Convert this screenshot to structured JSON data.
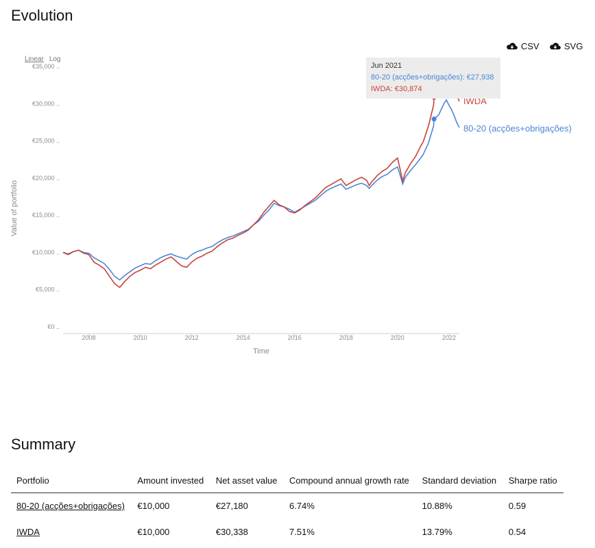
{
  "evolution_title": "Evolution",
  "downloads": {
    "csv_label": "CSV",
    "svg_label": "SVG",
    "icon": "cloud-download-icon"
  },
  "scale_toggle": {
    "linear": "Linear",
    "log": "Log",
    "active": "linear"
  },
  "tooltip": {
    "date": "Jun 2021",
    "line1": "80-20 (acções+obrigações): €27,938",
    "line2": "IWDA: €30,874"
  },
  "chart_data": {
    "type": "line",
    "xlabel": "Time",
    "ylabel": "Value of portfolio",
    "x_ticks": [
      "2008",
      "2010",
      "2012",
      "2014",
      "2016",
      "2018",
      "2020",
      "2022"
    ],
    "y_ticks": [
      "€0",
      "€5,000",
      "€10,000",
      "€15,000",
      "€20,000",
      "€25,000",
      "€30,000",
      "€35,000"
    ],
    "xlim": [
      2007.0,
      2022.4
    ],
    "ylim": [
      0,
      37500
    ],
    "grid": false,
    "highlight_x": 2021.42,
    "series": [
      {
        "name": "80-20 (acções+obrigações)",
        "color": "#4a86d4",
        "points": [
          [
            2007.0,
            10000
          ],
          [
            2007.2,
            9800
          ],
          [
            2007.4,
            10100
          ],
          [
            2007.6,
            10300
          ],
          [
            2007.8,
            10000
          ],
          [
            2008.0,
            9900
          ],
          [
            2008.2,
            9300
          ],
          [
            2008.4,
            8900
          ],
          [
            2008.6,
            8500
          ],
          [
            2008.8,
            7700
          ],
          [
            2009.0,
            6800
          ],
          [
            2009.2,
            6300
          ],
          [
            2009.4,
            6900
          ],
          [
            2009.6,
            7400
          ],
          [
            2009.8,
            7900
          ],
          [
            2010.0,
            8200
          ],
          [
            2010.2,
            8500
          ],
          [
            2010.4,
            8400
          ],
          [
            2010.6,
            8900
          ],
          [
            2010.8,
            9300
          ],
          [
            2011.0,
            9600
          ],
          [
            2011.2,
            9800
          ],
          [
            2011.4,
            9500
          ],
          [
            2011.6,
            9300
          ],
          [
            2011.8,
            9100
          ],
          [
            2012.0,
            9700
          ],
          [
            2012.2,
            10100
          ],
          [
            2012.4,
            10300
          ],
          [
            2012.6,
            10600
          ],
          [
            2012.8,
            10800
          ],
          [
            2013.0,
            11300
          ],
          [
            2013.2,
            11700
          ],
          [
            2013.4,
            12000
          ],
          [
            2013.6,
            12200
          ],
          [
            2013.8,
            12500
          ],
          [
            2014.0,
            12800
          ],
          [
            2014.2,
            13100
          ],
          [
            2014.4,
            13700
          ],
          [
            2014.6,
            14200
          ],
          [
            2014.8,
            15000
          ],
          [
            2015.0,
            15700
          ],
          [
            2015.2,
            16600
          ],
          [
            2015.4,
            16300
          ],
          [
            2015.6,
            16100
          ],
          [
            2015.8,
            15800
          ],
          [
            2016.0,
            15400
          ],
          [
            2016.2,
            15800
          ],
          [
            2016.4,
            16200
          ],
          [
            2016.6,
            16600
          ],
          [
            2016.8,
            17000
          ],
          [
            2017.0,
            17600
          ],
          [
            2017.2,
            18200
          ],
          [
            2017.4,
            18600
          ],
          [
            2017.6,
            18900
          ],
          [
            2017.8,
            19200
          ],
          [
            2018.0,
            18500
          ],
          [
            2018.2,
            18800
          ],
          [
            2018.4,
            19100
          ],
          [
            2018.6,
            19300
          ],
          [
            2018.8,
            19000
          ],
          [
            2018.9,
            18600
          ],
          [
            2019.0,
            19000
          ],
          [
            2019.2,
            19700
          ],
          [
            2019.4,
            20200
          ],
          [
            2019.6,
            20500
          ],
          [
            2019.8,
            21100
          ],
          [
            2020.0,
            21500
          ],
          [
            2020.1,
            20400
          ],
          [
            2020.2,
            19200
          ],
          [
            2020.3,
            20100
          ],
          [
            2020.5,
            21000
          ],
          [
            2020.7,
            21800
          ],
          [
            2020.9,
            22700
          ],
          [
            2021.0,
            23200
          ],
          [
            2021.2,
            24700
          ],
          [
            2021.4,
            27000
          ],
          [
            2021.42,
            27938
          ],
          [
            2021.6,
            28500
          ],
          [
            2021.8,
            30000
          ],
          [
            2021.9,
            30500
          ],
          [
            2022.0,
            29800
          ],
          [
            2022.1,
            29200
          ],
          [
            2022.2,
            28400
          ],
          [
            2022.3,
            27500
          ],
          [
            2022.4,
            26800
          ]
        ]
      },
      {
        "name": "IWDA",
        "color": "#c8423a",
        "points": [
          [
            2007.0,
            10000
          ],
          [
            2007.2,
            9700
          ],
          [
            2007.4,
            10100
          ],
          [
            2007.6,
            10300
          ],
          [
            2007.8,
            9900
          ],
          [
            2008.0,
            9700
          ],
          [
            2008.2,
            8700
          ],
          [
            2008.4,
            8300
          ],
          [
            2008.6,
            7800
          ],
          [
            2008.8,
            6800
          ],
          [
            2009.0,
            5800
          ],
          [
            2009.2,
            5300
          ],
          [
            2009.4,
            6100
          ],
          [
            2009.6,
            6800
          ],
          [
            2009.8,
            7300
          ],
          [
            2010.0,
            7600
          ],
          [
            2010.2,
            8000
          ],
          [
            2010.4,
            7800
          ],
          [
            2010.6,
            8300
          ],
          [
            2010.8,
            8700
          ],
          [
            2011.0,
            9100
          ],
          [
            2011.2,
            9400
          ],
          [
            2011.4,
            8800
          ],
          [
            2011.6,
            8200
          ],
          [
            2011.8,
            8000
          ],
          [
            2012.0,
            8700
          ],
          [
            2012.2,
            9200
          ],
          [
            2012.4,
            9500
          ],
          [
            2012.6,
            9900
          ],
          [
            2012.8,
            10200
          ],
          [
            2013.0,
            10800
          ],
          [
            2013.2,
            11300
          ],
          [
            2013.4,
            11700
          ],
          [
            2013.6,
            11900
          ],
          [
            2013.8,
            12300
          ],
          [
            2014.0,
            12600
          ],
          [
            2014.2,
            13000
          ],
          [
            2014.4,
            13700
          ],
          [
            2014.6,
            14400
          ],
          [
            2014.8,
            15400
          ],
          [
            2015.0,
            16200
          ],
          [
            2015.2,
            17000
          ],
          [
            2015.4,
            16400
          ],
          [
            2015.6,
            16100
          ],
          [
            2015.8,
            15500
          ],
          [
            2016.0,
            15300
          ],
          [
            2016.2,
            15700
          ],
          [
            2016.4,
            16300
          ],
          [
            2016.6,
            16800
          ],
          [
            2016.8,
            17300
          ],
          [
            2017.0,
            18000
          ],
          [
            2017.2,
            18700
          ],
          [
            2017.4,
            19100
          ],
          [
            2017.6,
            19500
          ],
          [
            2017.8,
            19900
          ],
          [
            2018.0,
            19000
          ],
          [
            2018.2,
            19400
          ],
          [
            2018.4,
            19800
          ],
          [
            2018.6,
            20100
          ],
          [
            2018.8,
            19700
          ],
          [
            2018.9,
            19000
          ],
          [
            2019.0,
            19500
          ],
          [
            2019.2,
            20300
          ],
          [
            2019.4,
            20900
          ],
          [
            2019.6,
            21300
          ],
          [
            2019.8,
            22100
          ],
          [
            2020.0,
            22700
          ],
          [
            2020.1,
            21200
          ],
          [
            2020.2,
            19600
          ],
          [
            2020.3,
            20700
          ],
          [
            2020.5,
            21900
          ],
          [
            2020.7,
            22900
          ],
          [
            2020.9,
            24300
          ],
          [
            2021.0,
            24900
          ],
          [
            2021.2,
            27000
          ],
          [
            2021.4,
            29800
          ],
          [
            2021.42,
            30874
          ],
          [
            2021.6,
            31500
          ],
          [
            2021.8,
            33500
          ],
          [
            2021.9,
            34200
          ],
          [
            2022.0,
            33400
          ],
          [
            2022.1,
            33900
          ],
          [
            2022.2,
            32800
          ],
          [
            2022.3,
            31200
          ],
          [
            2022.4,
            30300
          ]
        ]
      }
    ]
  },
  "summary_title": "Summary",
  "summary_table": {
    "headers": [
      "Portfolio",
      "Amount invested",
      "Net asset value",
      "Compound annual growth rate",
      "Standard deviation",
      "Sharpe ratio"
    ],
    "rows": [
      [
        "80-20 (acções+obrigações)",
        "€10,000",
        "€27,180",
        "6.74%",
        "10.88%",
        "0.59"
      ],
      [
        "IWDA",
        "€10,000",
        "€30,338",
        "7.51%",
        "13.79%",
        "0.54"
      ]
    ]
  }
}
